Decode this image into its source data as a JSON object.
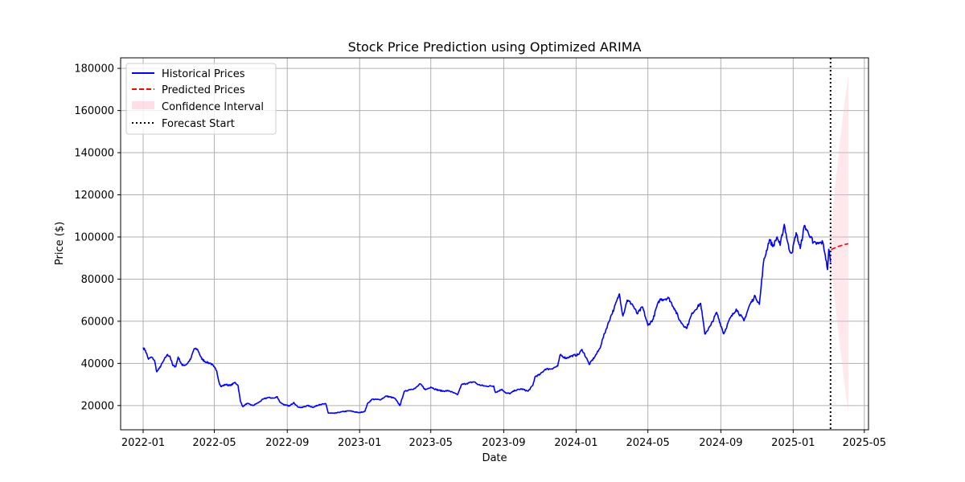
{
  "chart_data": {
    "type": "line",
    "title": "Stock Price Prediction using Optimized ARIMA",
    "xlabel": "Date",
    "ylabel": "Price ($)",
    "xlim": [
      "2021-11-24",
      "2025-05-08"
    ],
    "ylim": [
      8500,
      185000
    ],
    "grid": true,
    "legend_position": "top-left",
    "x_ticks": [
      "2022-01",
      "2022-05",
      "2022-09",
      "2023-01",
      "2023-05",
      "2023-09",
      "2024-01",
      "2024-05",
      "2024-09",
      "2025-01",
      "2025-05"
    ],
    "y_ticks": [
      20000,
      40000,
      60000,
      80000,
      100000,
      120000,
      140000,
      160000,
      180000
    ],
    "legend": [
      "Historical Prices",
      "Predicted Prices",
      "Confidence Interval",
      "Forecast Start"
    ],
    "colors": {
      "historical": "#0000ff",
      "predicted": "#ff0000",
      "confidence": "#ffc0cb",
      "forecast_start": "#000000",
      "grid": "#b0b0b0"
    },
    "series": [
      {
        "name": "Historical Prices",
        "style": "solid",
        "points": [
          [
            "2022-01-01",
            47500
          ],
          [
            "2022-01-05",
            46000
          ],
          [
            "2022-01-10",
            42000
          ],
          [
            "2022-01-15",
            43000
          ],
          [
            "2022-01-20",
            41500
          ],
          [
            "2022-01-24",
            36000
          ],
          [
            "2022-01-28",
            37500
          ],
          [
            "2022-02-05",
            41500
          ],
          [
            "2022-02-10",
            44000
          ],
          [
            "2022-02-15",
            43500
          ],
          [
            "2022-02-20",
            39000
          ],
          [
            "2022-02-25",
            38500
          ],
          [
            "2022-03-01",
            43000
          ],
          [
            "2022-03-08",
            39000
          ],
          [
            "2022-03-15",
            39500
          ],
          [
            "2022-03-22",
            42000
          ],
          [
            "2022-03-28",
            47000
          ],
          [
            "2022-04-03",
            46500
          ],
          [
            "2022-04-10",
            42000
          ],
          [
            "2022-04-18",
            40500
          ],
          [
            "2022-04-25",
            40000
          ],
          [
            "2022-04-30",
            38500
          ],
          [
            "2022-05-05",
            36500
          ],
          [
            "2022-05-09",
            31000
          ],
          [
            "2022-05-12",
            29000
          ],
          [
            "2022-05-20",
            30000
          ],
          [
            "2022-05-28",
            29500
          ],
          [
            "2022-06-05",
            31000
          ],
          [
            "2022-06-10",
            29500
          ],
          [
            "2022-06-14",
            22000
          ],
          [
            "2022-06-18",
            19500
          ],
          [
            "2022-06-25",
            21000
          ],
          [
            "2022-07-05",
            20000
          ],
          [
            "2022-07-15",
            21500
          ],
          [
            "2022-07-22",
            23000
          ],
          [
            "2022-07-30",
            23800
          ],
          [
            "2022-08-10",
            23500
          ],
          [
            "2022-08-15",
            24200
          ],
          [
            "2022-08-20",
            21500
          ],
          [
            "2022-08-28",
            20200
          ],
          [
            "2022-09-05",
            19800
          ],
          [
            "2022-09-12",
            21500
          ],
          [
            "2022-09-18",
            19500
          ],
          [
            "2022-09-25",
            19000
          ],
          [
            "2022-10-05",
            20000
          ],
          [
            "2022-10-15",
            19200
          ],
          [
            "2022-10-25",
            20500
          ],
          [
            "2022-11-05",
            20800
          ],
          [
            "2022-11-09",
            16500
          ],
          [
            "2022-11-20",
            16300
          ],
          [
            "2022-12-01",
            17000
          ],
          [
            "2022-12-15",
            17500
          ],
          [
            "2022-12-31",
            16600
          ],
          [
            "2023-01-10",
            17300
          ],
          [
            "2023-01-14",
            20800
          ],
          [
            "2023-01-22",
            23000
          ],
          [
            "2023-02-05",
            22800
          ],
          [
            "2023-02-15",
            24500
          ],
          [
            "2023-03-01",
            23500
          ],
          [
            "2023-03-10",
            20000
          ],
          [
            "2023-03-17",
            26500
          ],
          [
            "2023-03-25",
            27500
          ],
          [
            "2023-04-05",
            28200
          ],
          [
            "2023-04-13",
            30300
          ],
          [
            "2023-04-22",
            27500
          ],
          [
            "2023-05-01",
            28800
          ],
          [
            "2023-05-10",
            27600
          ],
          [
            "2023-05-20",
            26900
          ],
          [
            "2023-06-01",
            27000
          ],
          [
            "2023-06-15",
            25100
          ],
          [
            "2023-06-22",
            30000
          ],
          [
            "2023-07-01",
            30500
          ],
          [
            "2023-07-13",
            31300
          ],
          [
            "2023-07-20",
            29900
          ],
          [
            "2023-08-01",
            29200
          ],
          [
            "2023-08-15",
            29300
          ],
          [
            "2023-08-18",
            26200
          ],
          [
            "2023-08-29",
            27700
          ],
          [
            "2023-09-05",
            25800
          ],
          [
            "2023-09-12",
            25800
          ],
          [
            "2023-09-20",
            27200
          ],
          [
            "2023-10-01",
            27900
          ],
          [
            "2023-10-12",
            26800
          ],
          [
            "2023-10-20",
            29600
          ],
          [
            "2023-10-24",
            33800
          ],
          [
            "2023-11-01",
            34700
          ],
          [
            "2023-11-10",
            37300
          ],
          [
            "2023-11-20",
            37400
          ],
          [
            "2023-12-01",
            38700
          ],
          [
            "2023-12-05",
            44000
          ],
          [
            "2023-12-15",
            42500
          ],
          [
            "2023-12-25",
            43600
          ],
          [
            "2024-01-05",
            44200
          ],
          [
            "2024-01-11",
            46600
          ],
          [
            "2024-01-20",
            41600
          ],
          [
            "2024-01-23",
            39500
          ],
          [
            "2024-02-01",
            43000
          ],
          [
            "2024-02-10",
            47100
          ],
          [
            "2024-02-15",
            51800
          ],
          [
            "2024-02-28",
            62000
          ],
          [
            "2024-03-05",
            66000
          ],
          [
            "2024-03-14",
            73000
          ],
          [
            "2024-03-20",
            62500
          ],
          [
            "2024-03-27",
            70000
          ],
          [
            "2024-04-05",
            68000
          ],
          [
            "2024-04-13",
            63500
          ],
          [
            "2024-04-22",
            66800
          ],
          [
            "2024-05-01",
            58000
          ],
          [
            "2024-05-10",
            61000
          ],
          [
            "2024-05-15",
            66200
          ],
          [
            "2024-05-21",
            70200
          ],
          [
            "2024-06-05",
            71000
          ],
          [
            "2024-06-15",
            66000
          ],
          [
            "2024-06-24",
            60200
          ],
          [
            "2024-07-05",
            56600
          ],
          [
            "2024-07-15",
            64000
          ],
          [
            "2024-07-29",
            68500
          ],
          [
            "2024-08-05",
            54000
          ],
          [
            "2024-08-15",
            58000
          ],
          [
            "2024-08-25",
            64200
          ],
          [
            "2024-09-06",
            54000
          ],
          [
            "2024-09-15",
            60500
          ],
          [
            "2024-09-27",
            65800
          ],
          [
            "2024-10-10",
            60200
          ],
          [
            "2024-10-20",
            68000
          ],
          [
            "2024-10-29",
            72000
          ],
          [
            "2024-11-05",
            68000
          ],
          [
            "2024-11-08",
            76500
          ],
          [
            "2024-11-12",
            88000
          ],
          [
            "2024-11-22",
            98800
          ],
          [
            "2024-11-28",
            95500
          ],
          [
            "2024-12-05",
            100000
          ],
          [
            "2024-12-10",
            96000
          ],
          [
            "2024-12-17",
            106000
          ],
          [
            "2024-12-25",
            94000
          ],
          [
            "2024-12-30",
            92500
          ],
          [
            "2025-01-06",
            102000
          ],
          [
            "2025-01-13",
            94500
          ],
          [
            "2025-01-20",
            105500
          ],
          [
            "2025-01-27",
            101500
          ],
          [
            "2025-02-01",
            100000
          ],
          [
            "2025-02-03",
            97000
          ],
          [
            "2025-02-12",
            96800
          ],
          [
            "2025-02-20",
            97500
          ],
          [
            "2025-02-24",
            91500
          ],
          [
            "2025-02-28",
            84500
          ],
          [
            "2025-03-02",
            94200
          ],
          [
            "2025-03-05",
            88000
          ]
        ]
      },
      {
        "name": "Predicted Prices",
        "style": "dashed",
        "points": [
          [
            "2025-03-06",
            94000
          ],
          [
            "2025-03-12",
            94800
          ],
          [
            "2025-03-18",
            95500
          ],
          [
            "2025-03-24",
            96000
          ],
          [
            "2025-03-30",
            96500
          ],
          [
            "2025-04-04",
            96800
          ]
        ]
      }
    ],
    "confidence_interval": {
      "name": "Confidence Interval",
      "points": [
        [
          "2025-03-06",
          94000,
          94000
        ],
        [
          "2025-03-07",
          82000,
          106000
        ],
        [
          "2025-03-12",
          70000,
          122000
        ],
        [
          "2025-03-18",
          55000,
          138000
        ],
        [
          "2025-03-24",
          41000,
          153000
        ],
        [
          "2025-03-30",
          27000,
          167000
        ],
        [
          "2025-04-04",
          17000,
          177000
        ]
      ]
    },
    "forecast_start": "2025-03-05"
  }
}
